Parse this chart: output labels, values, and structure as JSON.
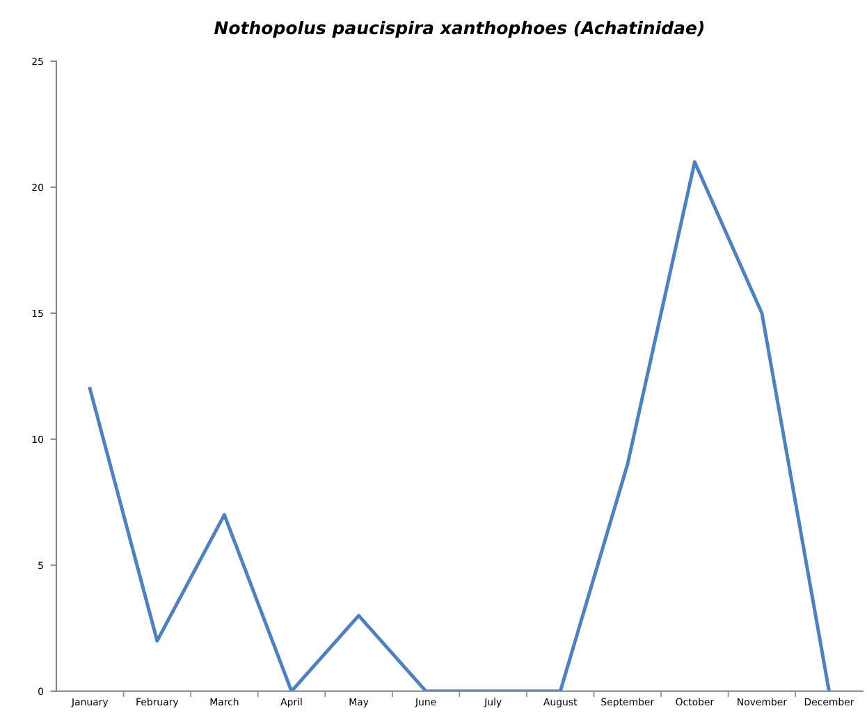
{
  "chart_data": {
    "type": "line",
    "title": "Nothopolus paucispira xanthophoes (Achatinidae)",
    "categories": [
      "January",
      "February",
      "March",
      "April",
      "May",
      "June",
      "July",
      "August",
      "September",
      "October",
      "November",
      "December"
    ],
    "series": [
      {
        "color": "#4f81bd",
        "values": [
          12,
          2,
          7,
          0,
          3,
          0,
          0,
          0,
          9,
          21,
          15,
          0
        ]
      }
    ],
    "ylim": [
      0,
      25
    ],
    "yticks": [
      0,
      5,
      10,
      15,
      20,
      25
    ],
    "grid": false,
    "legend": false,
    "marker": "none",
    "line_style": "solid"
  }
}
